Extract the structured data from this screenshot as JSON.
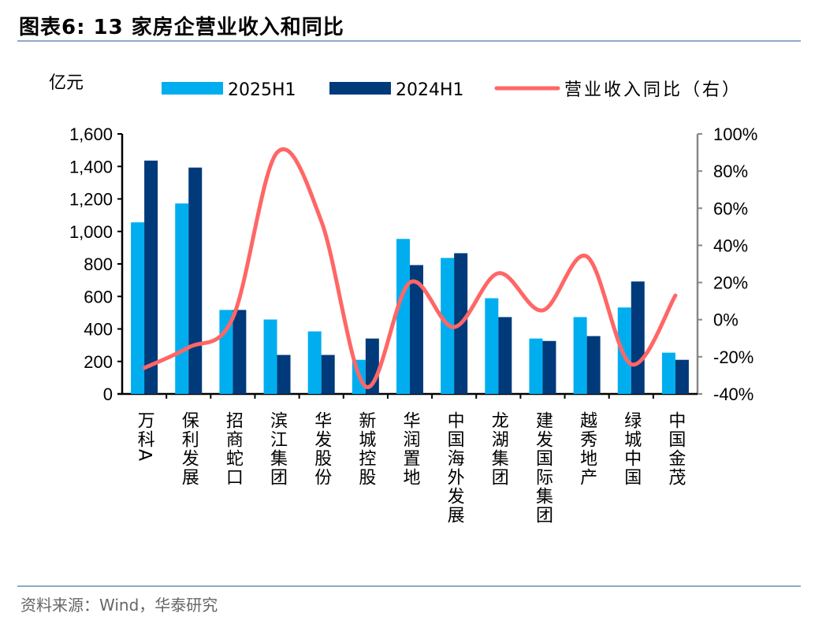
{
  "title": "图表6:  13 家房企营业收入和同比",
  "source": "资料来源：Wind，华泰研究",
  "chart_data": {
    "type": "bar",
    "left_unit": "亿元",
    "categories": [
      "万科A",
      "保利发展",
      "招商蛇口",
      "滨江集团",
      "华发股份",
      "新城控股",
      "华润置地",
      "中国海外发展",
      "龙湖集团",
      "建发国际集团",
      "越秀地产",
      "绿城中国",
      "中国金茂"
    ],
    "series": [
      {
        "name": "2025H1",
        "axis": "left",
        "kind": "bar",
        "color": "#00aeef",
        "values": [
          1056,
          1172,
          517,
          458,
          385,
          210,
          954,
          837,
          589,
          341,
          473,
          532,
          254
        ]
      },
      {
        "name": "2024H1",
        "axis": "left",
        "kind": "bar",
        "color": "#003a7a",
        "values": [
          1436,
          1393,
          517,
          240,
          240,
          341,
          793,
          866,
          473,
          326,
          356,
          692,
          210
        ]
      },
      {
        "name": "营业收入同比（右）",
        "axis": "right",
        "kind": "line",
        "color": "#ff6666",
        "values": [
          -26,
          -15,
          1,
          90,
          53,
          -36,
          20,
          -4,
          25,
          5,
          34,
          -24,
          13
        ]
      }
    ],
    "left_ylim": [
      0,
      1600
    ],
    "left_ticks": [
      "0",
      "200",
      "400",
      "600",
      "800",
      "1,000",
      "1,200",
      "1,400",
      "1,600"
    ],
    "right_ylim": [
      -40,
      100
    ],
    "right_ticks": [
      "-40%",
      "-20%",
      "0%",
      "20%",
      "40%",
      "60%",
      "80%",
      "100%"
    ],
    "legend": "top",
    "grid": false
  }
}
